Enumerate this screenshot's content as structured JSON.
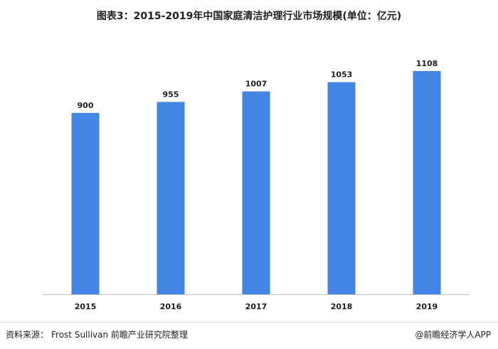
{
  "title": "图表3：2015-2019年中国家庭清洁护理行业市场规模(单位：亿元)",
  "chart_data": {
    "type": "bar",
    "title": "图表3：2015-2019年中国家庭清洁护理行业市场规模(单位：亿元)",
    "categories": [
      "2015",
      "2016",
      "2017",
      "2018",
      "2019"
    ],
    "values": [
      900,
      955,
      1007,
      1053,
      1108
    ],
    "data_labels": [
      "900",
      "955",
      "1007",
      "1053",
      "1108"
    ],
    "ylim": [
      0,
      1200
    ],
    "grid": false,
    "legend": "none",
    "bar_color": "#4285e4"
  },
  "footer": {
    "source_label": "资料来源：",
    "source_text": "Frost Sullivan 前瞻产业研究院整理",
    "brand": "@前瞻经济学人APP"
  }
}
